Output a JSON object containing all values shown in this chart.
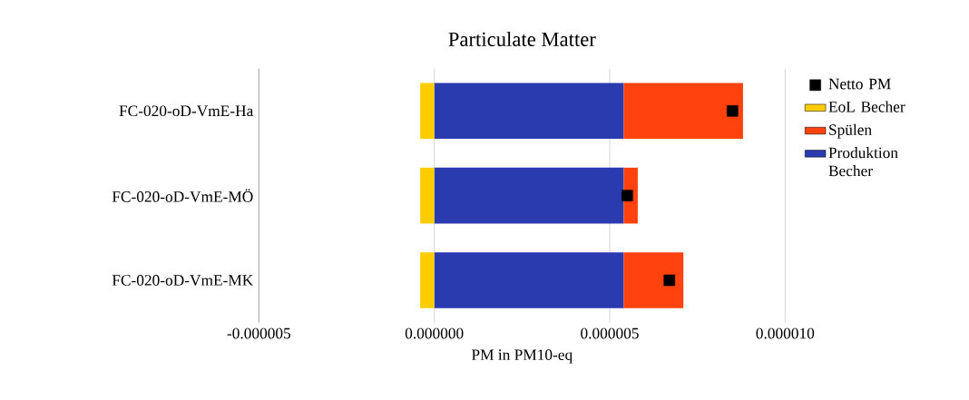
{
  "chart_data": {
    "type": "bar",
    "orientation": "horizontal",
    "stacked": true,
    "title": "Particulate Matter",
    "xlabel": "PM in PM10-eq",
    "categories": [
      "FC-020-oD-VmE-Ha",
      "FC-020-oD-VmE-MÖ",
      "FC-020-oD-VmE-MK"
    ],
    "series": [
      {
        "name": "Produktion Becher",
        "color": "#2a3bb0",
        "values": [
          5.4e-06,
          5.4e-06,
          5.4e-06
        ]
      },
      {
        "name": "Spülen",
        "color": "#ff420e",
        "values": [
          3.4e-06,
          4e-07,
          1.7e-06
        ]
      },
      {
        "name": "EoL Becher",
        "color": "#ffcc00",
        "values": [
          -4e-07,
          -4e-07,
          -4e-07
        ]
      },
      {
        "name": "Netto PM",
        "type": "scatter",
        "color": "#000000",
        "marker": "square",
        "values": [
          8.5e-06,
          5.5e-06,
          6.7e-06
        ]
      }
    ],
    "xlim": [
      -5e-06,
      1e-05
    ],
    "xticks": [
      {
        "value": -5e-06,
        "label": "-0.000005"
      },
      {
        "value": 0,
        "label": "0.000000"
      },
      {
        "value": 5e-06,
        "label": "0.000005"
      },
      {
        "value": 1e-05,
        "label": "0.000010"
      }
    ],
    "grid": "x",
    "legend": "right"
  }
}
